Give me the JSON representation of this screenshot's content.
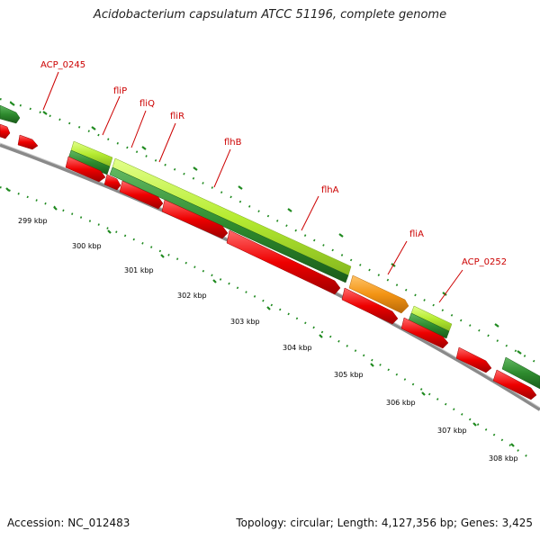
{
  "title": "Acidobacterium capsulatum ATCC 51196, complete genome",
  "footer": {
    "accession": "Accession: NC_012483",
    "topology": "Topology: circular; Length: 4,127,356 bp; Genes: 3,425"
  },
  "colors": {
    "cds_red": "#ee0000",
    "gene_dark_green": "#2e8b2e",
    "gene_light_green": "#b6ec32",
    "gene_orange": "#f39414",
    "backbone_gray": "#8a8a8a",
    "tick_green": "#1f8a1f",
    "label_red": "#cc0000"
  },
  "gene_labels": [
    "ACP_0245",
    "fliP",
    "fliQ",
    "fliR",
    "flhB",
    "flhA",
    "fliA",
    "ACP_0252"
  ],
  "kbp_labels": [
    "299 kbp",
    "300 kbp",
    "301 kbp",
    "302 kbp",
    "303 kbp",
    "304 kbp",
    "305 kbp",
    "306 kbp",
    "307 kbp",
    "308 kbp"
  ]
}
